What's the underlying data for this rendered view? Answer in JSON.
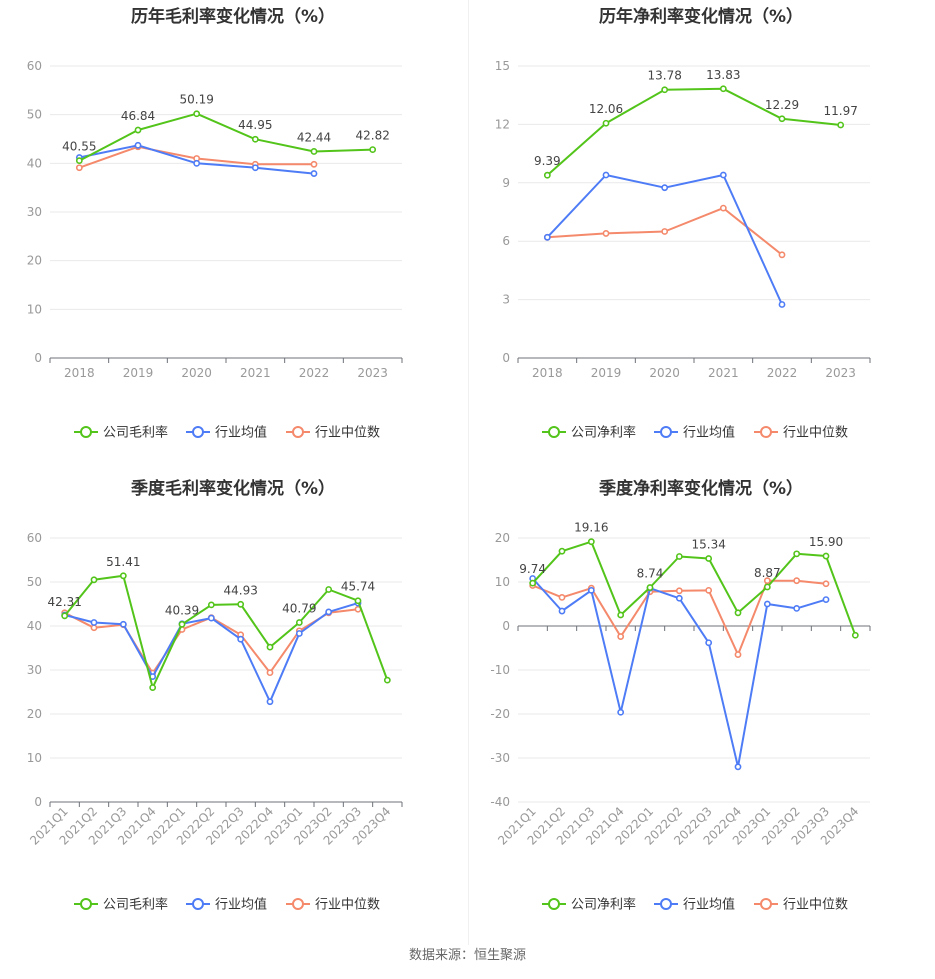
{
  "source_text": "数据来源：恒生聚源",
  "chart_data": [
    {
      "type": "line",
      "title": "历年毛利率变化情况（%）",
      "categories": [
        "2018",
        "2019",
        "2020",
        "2021",
        "2022",
        "2023"
      ],
      "ylim": [
        0,
        60
      ],
      "yticks": [
        0,
        10,
        20,
        30,
        40,
        50,
        60
      ],
      "grid": true,
      "legend_position": "bottom",
      "series": [
        {
          "name": "公司毛利率",
          "color": "#52c41a",
          "values": [
            40.55,
            46.84,
            50.19,
            44.95,
            42.44,
            42.82
          ],
          "labels": [
            "40.55",
            "46.84",
            "50.19",
            "44.95",
            "42.44",
            "42.82"
          ]
        },
        {
          "name": "行业均值",
          "color": "#4e7cf6",
          "values": [
            41.2,
            43.7,
            40.0,
            39.1,
            37.9,
            null
          ]
        },
        {
          "name": "行业中位数",
          "color": "#f4896b",
          "values": [
            39.1,
            43.4,
            41.0,
            39.8,
            39.8,
            null
          ]
        }
      ]
    },
    {
      "type": "line",
      "title": "历年净利率变化情况（%）",
      "categories": [
        "2018",
        "2019",
        "2020",
        "2021",
        "2022",
        "2023"
      ],
      "ylim": [
        0,
        15
      ],
      "yticks": [
        0,
        3,
        6,
        9,
        12,
        15
      ],
      "grid": true,
      "legend_position": "bottom",
      "series": [
        {
          "name": "公司净利率",
          "color": "#52c41a",
          "values": [
            9.39,
            12.06,
            13.78,
            13.83,
            12.29,
            11.97
          ],
          "labels": [
            "9.39",
            "12.06",
            "13.78",
            "13.83",
            "12.29",
            "11.97"
          ]
        },
        {
          "name": "行业均值",
          "color": "#4e7cf6",
          "values": [
            6.2,
            9.4,
            8.75,
            9.4,
            2.75,
            null
          ]
        },
        {
          "name": "行业中位数",
          "color": "#f4896b",
          "values": [
            6.2,
            6.4,
            6.5,
            7.7,
            5.3,
            null
          ]
        }
      ]
    },
    {
      "type": "line",
      "title": "季度毛利率变化情况（%）",
      "categories": [
        "2021Q1",
        "2021Q2",
        "2021Q3",
        "2021Q4",
        "2022Q1",
        "2022Q2",
        "2022Q3",
        "2022Q4",
        "2023Q1",
        "2023Q2",
        "2023Q3",
        "2023Q4"
      ],
      "ylim": [
        0,
        60
      ],
      "yticks": [
        0,
        10,
        20,
        30,
        40,
        50,
        60
      ],
      "grid": true,
      "legend_position": "bottom",
      "series": [
        {
          "name": "公司毛利率",
          "color": "#52c41a",
          "values": [
            42.31,
            50.5,
            51.41,
            26.0,
            40.39,
            44.8,
            44.93,
            35.2,
            40.79,
            48.3,
            45.74,
            27.7
          ],
          "labels": [
            "42.31",
            null,
            "51.41",
            null,
            "40.39",
            null,
            "44.93",
            null,
            "40.79",
            null,
            "45.74",
            null
          ]
        },
        {
          "name": "行业均值",
          "color": "#4e7cf6",
          "values": [
            42.5,
            40.8,
            40.4,
            28.5,
            40.5,
            41.8,
            37.0,
            22.8,
            38.3,
            43.2,
            45.2,
            null
          ]
        },
        {
          "name": "行业中位数",
          "color": "#f4896b",
          "values": [
            43.0,
            39.6,
            40.3,
            29.3,
            39.2,
            41.9,
            38.0,
            29.4,
            38.9,
            43.0,
            43.8,
            null
          ]
        }
      ]
    },
    {
      "type": "line",
      "title": "季度净利率变化情况（%）",
      "categories": [
        "2021Q1",
        "2021Q2",
        "2021Q3",
        "2021Q4",
        "2022Q1",
        "2022Q2",
        "2022Q3",
        "2022Q4",
        "2023Q1",
        "2023Q2",
        "2023Q3",
        "2023Q4"
      ],
      "ylim": [
        -40,
        20
      ],
      "yticks": [
        -40,
        -30,
        -20,
        -10,
        0,
        10,
        20
      ],
      "grid": true,
      "legend_position": "bottom",
      "series": [
        {
          "name": "公司净利率",
          "color": "#52c41a",
          "values": [
            9.74,
            17.0,
            19.16,
            2.5,
            8.74,
            15.8,
            15.34,
            3.0,
            8.87,
            16.4,
            15.9,
            -2.1
          ],
          "labels": [
            "9.74",
            null,
            "19.16",
            null,
            "8.74",
            null,
            "15.34",
            null,
            "8.87",
            null,
            "15.90",
            null
          ]
        },
        {
          "name": "行业均值",
          "color": "#4e7cf6",
          "values": [
            10.8,
            3.4,
            8.1,
            -19.6,
            8.6,
            6.3,
            -3.8,
            -32.0,
            5.0,
            4.0,
            6.0,
            null
          ]
        },
        {
          "name": "行业中位数",
          "color": "#f4896b",
          "values": [
            9.2,
            6.5,
            8.6,
            -2.4,
            7.8,
            8.0,
            8.1,
            -6.5,
            10.3,
            10.3,
            9.6,
            null
          ]
        }
      ]
    }
  ]
}
